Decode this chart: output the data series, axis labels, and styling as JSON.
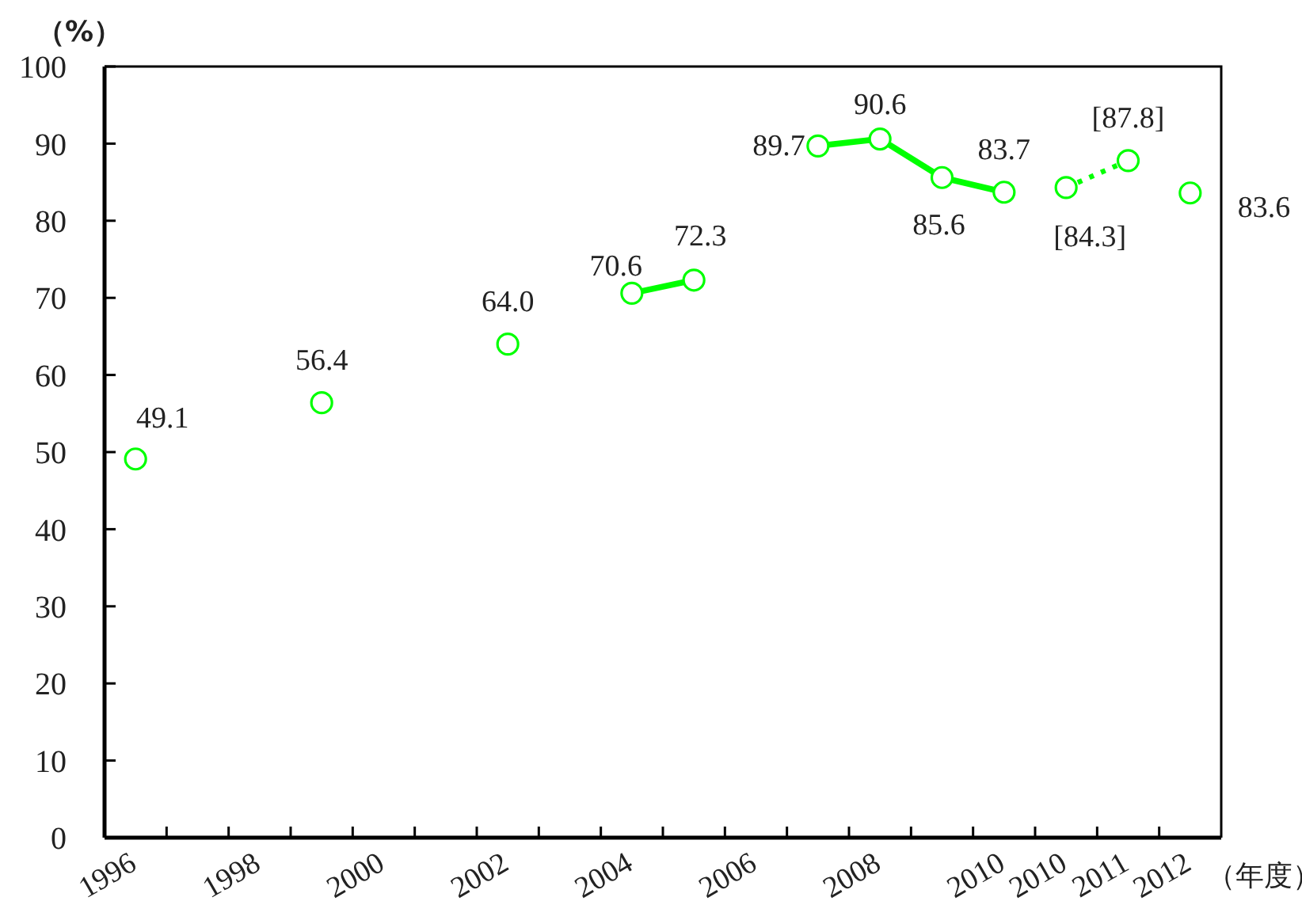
{
  "chart_data": {
    "type": "line",
    "ylabel": "（%）",
    "xlabel": "（年度）",
    "categories": [
      "1996",
      null,
      "1998",
      null,
      "2000",
      null,
      "2002",
      null,
      "2004",
      null,
      "2006",
      null,
      "2008",
      null,
      "2010",
      "2010",
      "2011",
      "2012"
    ],
    "series": [
      {
        "color": "#00ff00",
        "line_style": "solid",
        "values": [
          49.1,
          null,
          null,
          56.4,
          null,
          null,
          64.0,
          null,
          70.6,
          72.3,
          null,
          89.7,
          90.6,
          85.6,
          83.7,
          null,
          null,
          83.6
        ],
        "value_labels": [
          "49.1",
          null,
          null,
          "56.4",
          null,
          null,
          "64.0",
          null,
          "70.6",
          "72.3",
          null,
          "89.7",
          "90.6",
          "85.6",
          "83.7",
          null,
          null,
          "83.6"
        ]
      },
      {
        "color": "#00ff00",
        "line_style": "dotted",
        "values": [
          null,
          null,
          null,
          null,
          null,
          null,
          null,
          null,
          null,
          null,
          null,
          null,
          null,
          null,
          null,
          84.3,
          87.8,
          null
        ],
        "value_labels": [
          null,
          null,
          null,
          null,
          null,
          null,
          null,
          null,
          null,
          null,
          null,
          null,
          null,
          null,
          null,
          "[84.3]",
          "[87.8]",
          null
        ]
      }
    ],
    "ylim": [
      0,
      100
    ],
    "yticks": [
      0,
      10,
      20,
      30,
      40,
      50,
      60,
      70,
      80,
      90,
      100
    ],
    "marker": "circle"
  }
}
